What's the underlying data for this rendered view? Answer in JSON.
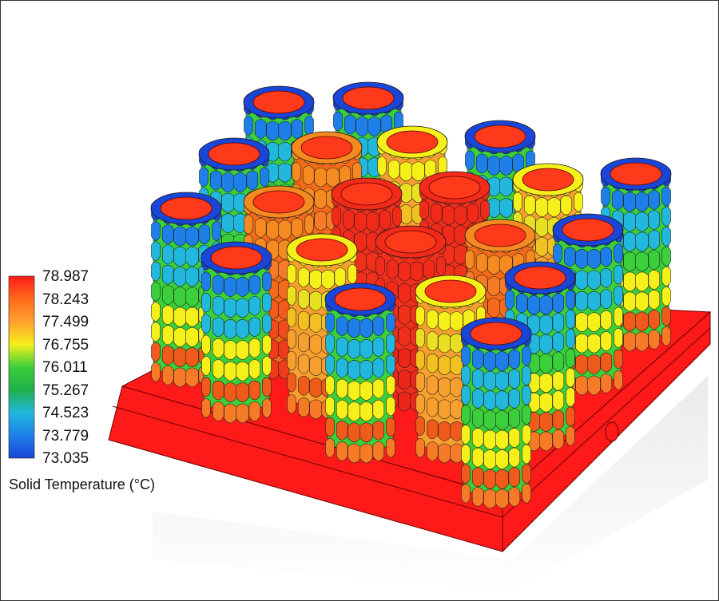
{
  "legend": {
    "title": "Solid Temperature (°C)",
    "labels": [
      "78.987",
      "78.243",
      "77.499",
      "76.755",
      "76.011",
      "75.267",
      "74.523",
      "73.779",
      "73.035"
    ],
    "colors": [
      "#ff1a1a",
      "#ff7a18",
      "#ffb030",
      "#f6f01a",
      "#3ccf3c",
      "#22b04a",
      "#22b8dd",
      "#1f7fe8",
      "#1a46d8"
    ]
  },
  "render": {
    "base_color": "#ff1a1a",
    "cap_color": "#ff3a1a",
    "bottom_row_colors": [
      "#f05a1a",
      "#f77a26"
    ]
  }
}
